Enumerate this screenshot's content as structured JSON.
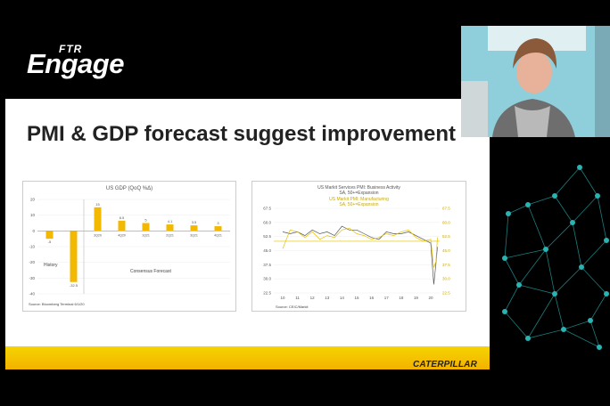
{
  "brand": {
    "ftr": "FTR",
    "engage": "Engage"
  },
  "slide": {
    "title": "PMI & GDP forecast suggest improvement",
    "logo": "CATERPILLAR"
  },
  "chart_data": [
    {
      "type": "bar",
      "title": "US GDP (QoQ %Δ)",
      "categories": [
        "",
        "",
        "3Q20",
        "4Q20",
        "1Q21",
        "2Q21",
        "3Q21",
        "4Q21"
      ],
      "values": [
        -5,
        -32.5,
        15,
        6.5,
        5,
        4.1,
        3.5,
        3
      ],
      "value_labels": [
        "-5",
        "-32.5",
        "15",
        "6.5",
        "5",
        "4.1",
        "3.5",
        "3"
      ],
      "ylim": [
        -40,
        20
      ],
      "yticks": [
        "20",
        "10",
        "0",
        "-10",
        "-20",
        "-30",
        "-40"
      ],
      "annotations": [
        "History",
        "Consensus Forecast"
      ],
      "source": "Source: Bloomberg Terminal 6/1/20",
      "bar_color": "#f3b800"
    },
    {
      "type": "line",
      "title": "US Markit Services PMI: Business Activity",
      "title_line2": "SA, 50+=Expansion",
      "subtitle": "US Markit PMI: Manufacturing",
      "subtitle_line2": "SA, 50+=Expansion",
      "x_ticks": [
        "10",
        "11",
        "12",
        "13",
        "14",
        "15",
        "16",
        "17",
        "18",
        "19",
        "20"
      ],
      "y_left_ticks": [
        "67.5",
        "60.0",
        "52.5",
        "45.0",
        "37.5",
        "30.0",
        "22.5"
      ],
      "y_right_ticks": [
        "67.5",
        "60.0",
        "52.5",
        "45.0",
        "37.5",
        "30.0",
        "22.5"
      ],
      "series": [
        {
          "name": "US Markit Services PMI: Business Activity",
          "color": "#555555",
          "x": [
            2010,
            2010.5,
            2011,
            2011.5,
            2012,
            2012.5,
            2013,
            2013.5,
            2014,
            2014.5,
            2015,
            2015.5,
            2016,
            2016.5,
            2017,
            2017.5,
            2018,
            2018.5,
            2019,
            2019.5,
            2020,
            2020.2,
            2020.35,
            2020.45
          ],
          "y": [
            55,
            54,
            55,
            53,
            56,
            54,
            55,
            53,
            58,
            56,
            56,
            54,
            52,
            51,
            55,
            54,
            54,
            55,
            53,
            51,
            49,
            27,
            38,
            47
          ]
        },
        {
          "name": "US Markit PMI: Manufacturing",
          "color": "#e3c000",
          "x": [
            2010,
            2010.5,
            2011,
            2011.5,
            2012,
            2012.5,
            2013,
            2013.5,
            2014,
            2014.5,
            2015,
            2015.5,
            2016,
            2016.5,
            2017,
            2017.5,
            2018,
            2018.5,
            2019,
            2019.5,
            2020,
            2020.2,
            2020.35,
            2020.45
          ],
          "y": [
            46,
            56,
            55,
            52,
            55,
            51,
            53,
            52,
            56,
            57,
            54,
            53,
            51,
            52,
            54,
            53,
            55,
            56,
            52,
            50,
            51,
            36,
            39,
            52
          ]
        }
      ],
      "source": "Source: CEIC/Markit"
    }
  ]
}
